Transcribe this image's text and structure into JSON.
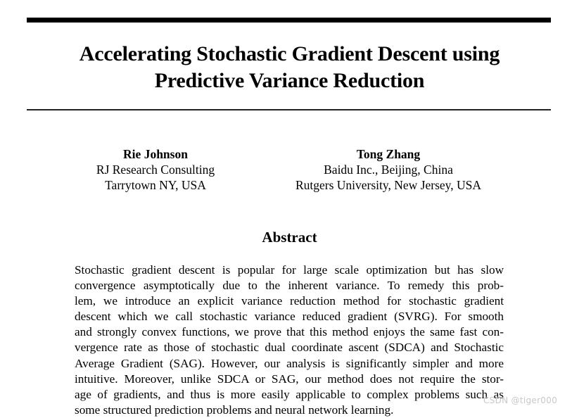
{
  "paper": {
    "title_lines": [
      "Accelerating Stochastic Gradient Descent using",
      "Predictive Variance Reduction"
    ],
    "authors": [
      {
        "name": "Rie Johnson",
        "affiliations": [
          "RJ Research Consulting",
          "Tarrytown NY, USA"
        ]
      },
      {
        "name": "Tong Zhang",
        "affiliations": [
          "Baidu Inc., Beijing, China",
          "Rutgers University, New Jersey, USA"
        ]
      }
    ],
    "abstract_heading": "Abstract",
    "abstract_lines": [
      "Stochastic gradient descent is popular for large scale optimization but has slow",
      "convergence asymptotically due to the inherent variance.  To remedy this prob-",
      "lem, we introduce an explicit variance reduction method for stochastic gradient",
      "descent which we call stochastic variance reduced gradient (SVRG). For smooth",
      "and strongly convex functions, we prove that this method enjoys the same fast con-",
      "vergence rate as those of stochastic dual coordinate ascent (SDCA) and Stochastic",
      "Average Gradient (SAG). However, our analysis is significantly simpler and more",
      "intuitive.  Moreover, unlike SDCA or SAG, our method does not require the stor-",
      "age of gradients, and thus is more easily applicable to complex problems such as",
      "some structured prediction problems and neural network learning."
    ]
  },
  "watermark": "CSDN @tiger000"
}
